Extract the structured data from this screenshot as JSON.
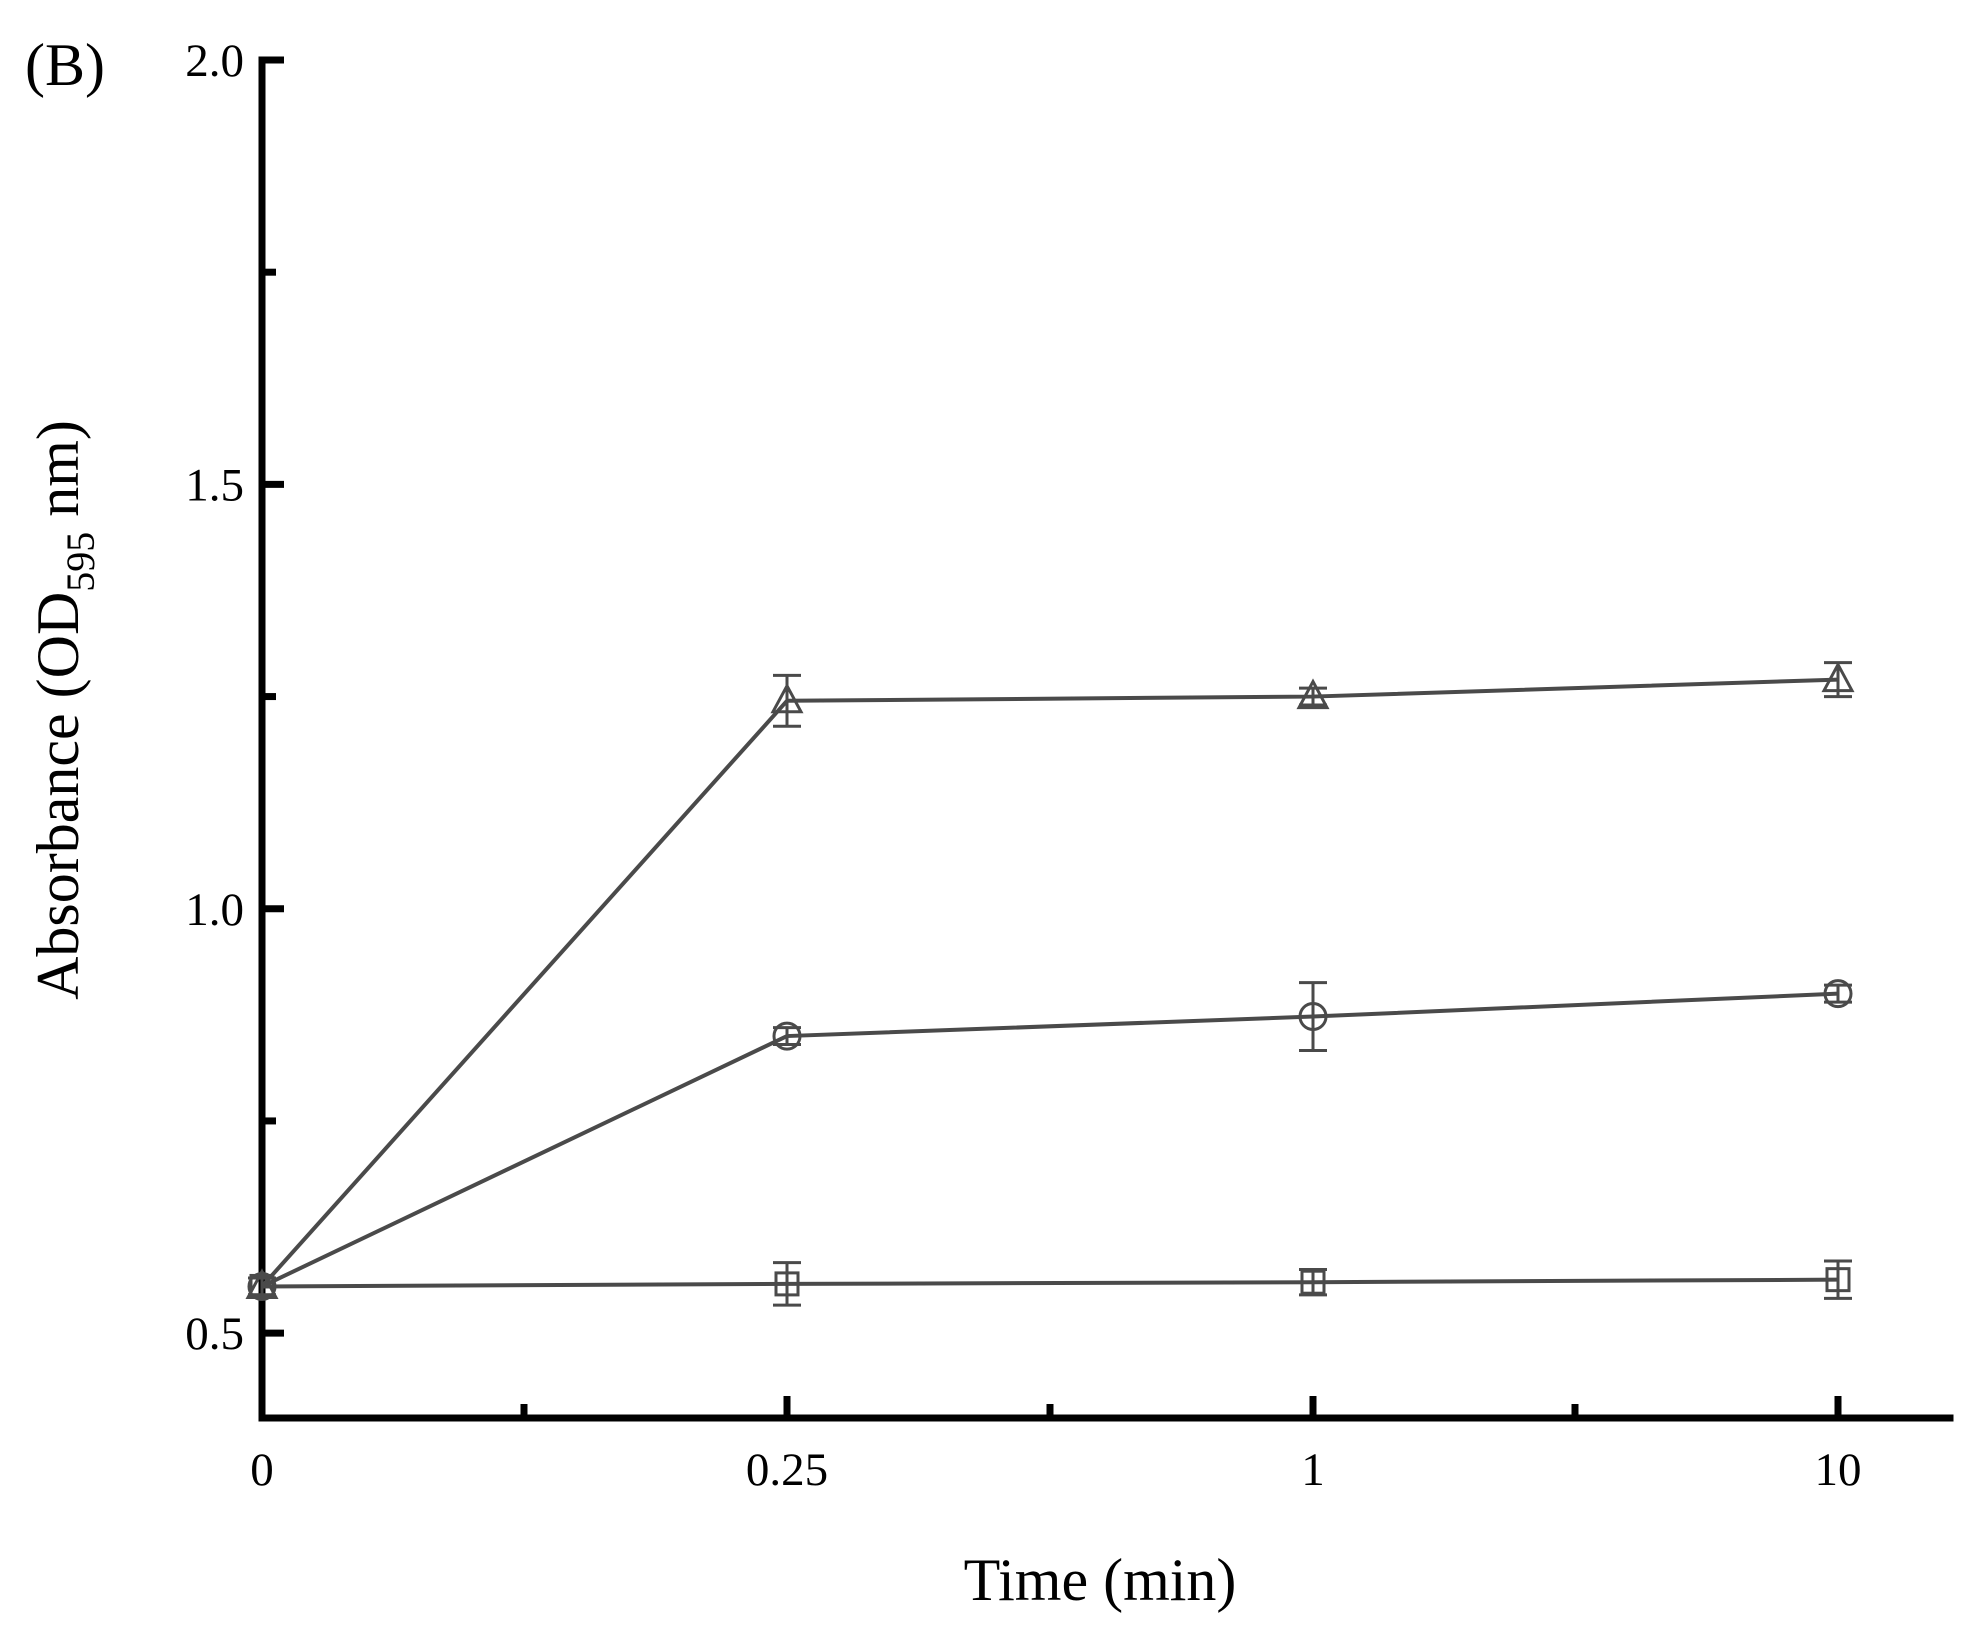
{
  "panel_label": "(B)",
  "colors": {
    "axis": "#000000",
    "series": "#4a4a4a"
  },
  "chart_data": {
    "type": "line",
    "title": "",
    "xlabel": "Time (min)",
    "ylabel": {
      "main": "Absorbance (OD",
      "subscript": "595",
      "suffix": " nm)"
    },
    "x_scale": "categorical",
    "categories": [
      "0",
      "0.25",
      "1",
      "10"
    ],
    "ylim": [
      0.4,
      2.0
    ],
    "yticks": [
      0.5,
      1.0,
      1.5,
      2.0
    ],
    "ytick_labels": [
      "0.5",
      "1.0",
      "1.5",
      "2.0"
    ],
    "y_minor_ticks": [
      0.75,
      1.25,
      1.75
    ],
    "grid": false,
    "legend": "none",
    "series": [
      {
        "marker": "triangle",
        "values": [
          0.555,
          1.245,
          1.25,
          1.27
        ],
        "errors": [
          0.01,
          0.03,
          0.01,
          0.02
        ]
      },
      {
        "marker": "circle",
        "values": [
          0.555,
          0.85,
          0.873,
          0.9
        ],
        "errors": [
          0.01,
          0.01,
          0.04,
          0.01
        ]
      },
      {
        "marker": "square",
        "values": [
          0.555,
          0.558,
          0.56,
          0.563
        ],
        "errors": [
          0.01,
          0.025,
          0.015,
          0.022
        ]
      }
    ]
  }
}
